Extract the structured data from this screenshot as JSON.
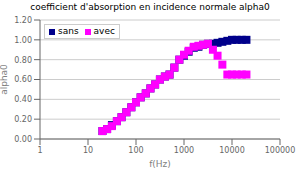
{
  "chart_data": {
    "type": "scatter",
    "title": "coefficient d'absorption en incidence normale alpha0",
    "xlabel": "f(Hz)",
    "ylabel": "alpha0",
    "log": "x",
    "grid": "y",
    "legend": "upper left",
    "marker": "square",
    "xlim": [
      1,
      100000
    ],
    "ylim": [
      0.0,
      1.2
    ],
    "xticks": [
      1,
      10,
      100,
      1000,
      10000,
      100000
    ],
    "yticks": [
      {
        "value": 0.0,
        "label": "0.00"
      },
      {
        "value": 0.2,
        "label": "0.20"
      },
      {
        "value": 0.4,
        "label": "0.40"
      },
      {
        "value": 0.6,
        "label": "0.60"
      },
      {
        "value": 0.8,
        "label": "0.80"
      },
      {
        "value": 1.0,
        "label": "1.00"
      },
      {
        "value": 1.2,
        "label": "1.20"
      }
    ],
    "x": [
      20,
      25,
      31.5,
      40,
      50,
      63,
      80,
      100,
      125,
      160,
      200,
      250,
      315,
      400,
      500,
      630,
      800,
      1000,
      1250,
      1600,
      2000,
      2500,
      3150,
      4000,
      5000,
      6300,
      8000,
      10000,
      12500,
      16000,
      20000
    ],
    "series": [
      {
        "name": "sans",
        "color": "#00008B",
        "values": [
          0.08,
          0.1,
          0.14,
          0.18,
          0.22,
          0.27,
          0.32,
          0.37,
          0.42,
          0.46,
          0.51,
          0.55,
          0.6,
          0.63,
          0.65,
          0.72,
          0.8,
          0.84,
          0.88,
          0.92,
          0.93,
          0.95,
          0.96,
          0.96,
          0.97,
          0.98,
          0.99,
          1.0,
          1.0,
          1.0,
          1.0
        ]
      },
      {
        "name": "avec",
        "color": "#ff00ff",
        "values": [
          0.08,
          0.1,
          0.13,
          0.18,
          0.22,
          0.27,
          0.32,
          0.37,
          0.42,
          0.46,
          0.51,
          0.55,
          0.6,
          0.63,
          0.65,
          0.72,
          0.8,
          0.85,
          0.89,
          0.93,
          0.94,
          0.95,
          0.96,
          0.9,
          0.84,
          0.75,
          0.65,
          0.65,
          0.65,
          0.65,
          0.65
        ]
      }
    ]
  }
}
